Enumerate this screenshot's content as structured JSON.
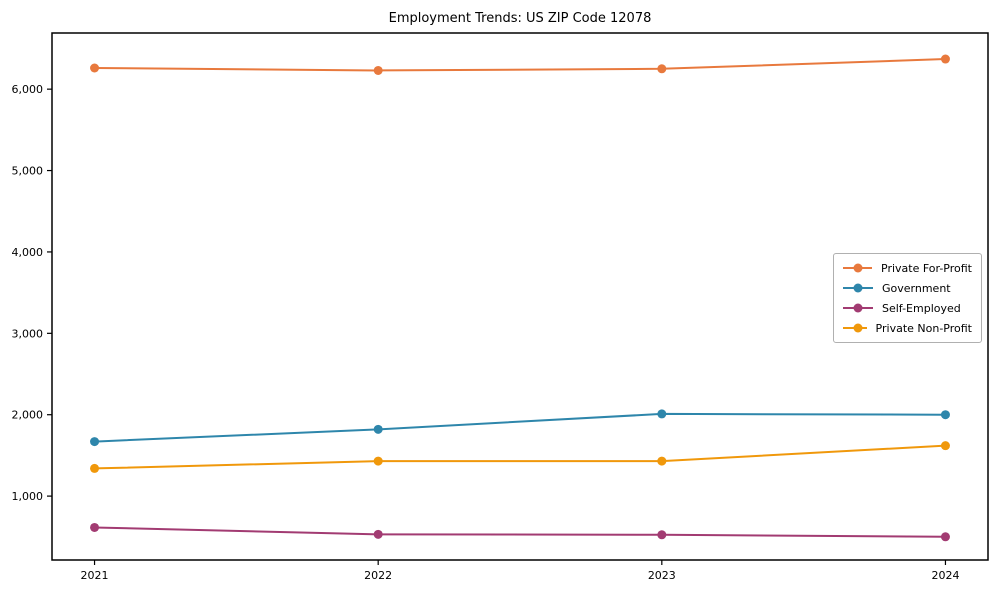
{
  "figure": {
    "background": "#ffffff",
    "axis_color": "#000000",
    "tick_label_color": "#000000"
  },
  "chart_data": {
    "type": "line",
    "title": "Employment Trends: US ZIP Code 12078",
    "xlabel": "",
    "ylabel": "",
    "x": [
      2021,
      2022,
      2023,
      2024
    ],
    "xticklabels": [
      "2021",
      "2022",
      "2023",
      "2024"
    ],
    "yticks": [
      1000,
      2000,
      3000,
      4000,
      5000,
      6000
    ],
    "yticklabels": [
      "1,000",
      "2,000",
      "3,000",
      "4,000",
      "5,000",
      "6,000"
    ],
    "xlim": [
      2020.85,
      2024.15
    ],
    "ylim": [
      215,
      6690
    ],
    "grid": false,
    "legend_position": "center-right",
    "series": [
      {
        "name": "Private For-Profit",
        "color": "#e8793d",
        "values": [
          6260,
          6230,
          6250,
          6370
        ]
      },
      {
        "name": "Government",
        "color": "#2e86ab",
        "values": [
          1670,
          1820,
          2010,
          2000
        ]
      },
      {
        "name": "Self-Employed",
        "color": "#a23b72",
        "values": [
          615,
          530,
          525,
          500
        ]
      },
      {
        "name": "Private Non-Profit",
        "color": "#f0980b",
        "values": [
          1340,
          1430,
          1430,
          1620
        ]
      }
    ]
  }
}
